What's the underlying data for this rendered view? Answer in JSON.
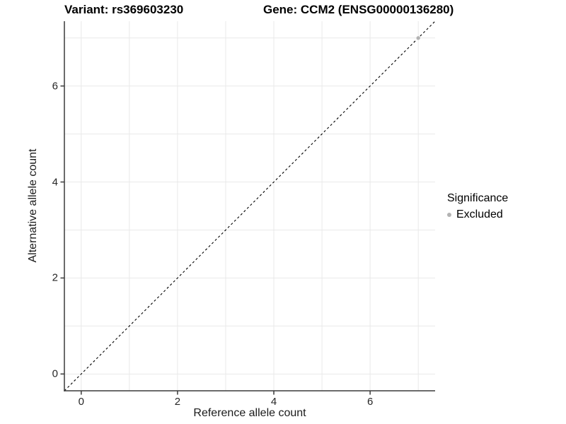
{
  "chart_data": {
    "type": "scatter",
    "title_variant": "Variant: rs369603230",
    "title_gene": "Gene: CCM2 (ENSG00000136280)",
    "xlabel": "Reference allele count",
    "ylabel": "Alternative allele count",
    "xlim": [
      -0.35,
      7.35
    ],
    "ylim": [
      -0.35,
      7.35
    ],
    "x_ticks": [
      0,
      2,
      4,
      6
    ],
    "y_ticks": [
      0,
      2,
      4,
      6
    ],
    "grid_x": [
      0,
      1,
      2,
      3,
      4,
      5,
      6,
      7
    ],
    "grid_y": [
      0,
      1,
      2,
      3,
      4,
      5,
      6,
      7
    ],
    "grid": "on",
    "legend": {
      "title": "Significance",
      "position": "right",
      "entries": [
        {
          "label": "Excluded",
          "color": "#b3b3b3"
        }
      ]
    },
    "series": [
      {
        "name": "Excluded",
        "color": "#b3b3b3",
        "points": [
          [
            7,
            7
          ]
        ]
      }
    ],
    "reference_line": {
      "type": "identity",
      "equation": "y = x",
      "style": "dashed",
      "color": "#000000"
    }
  },
  "style": {
    "background": "#ffffff",
    "grid_color": "#e9e9e9",
    "axis_color": "#3a3a3a",
    "tick_label_color": "#262626"
  }
}
